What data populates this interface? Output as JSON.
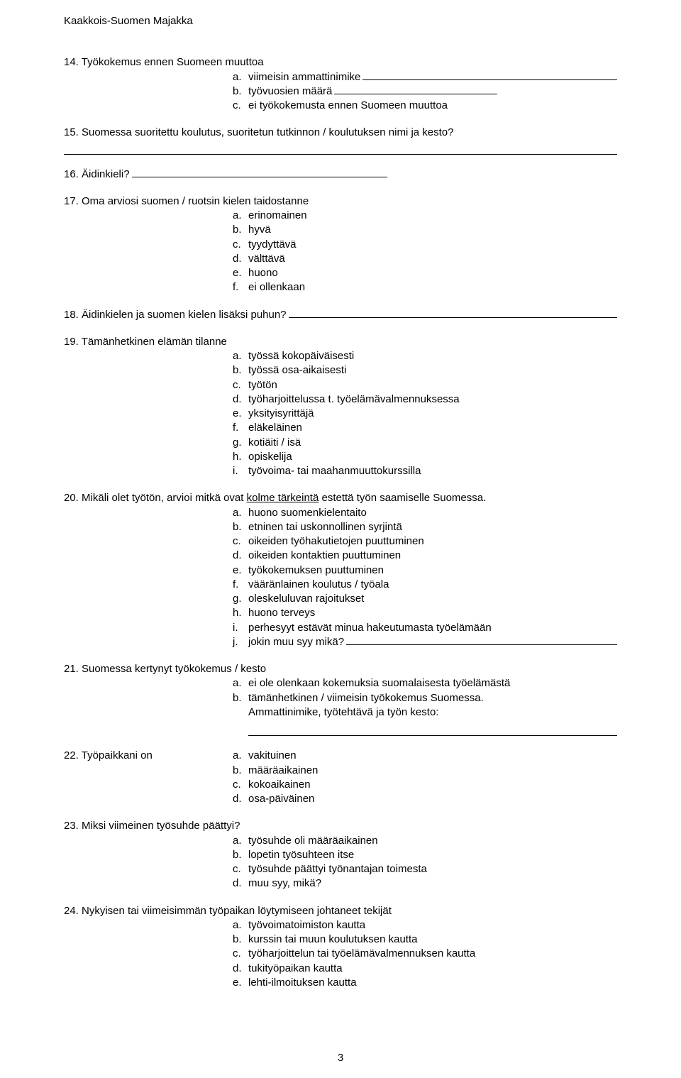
{
  "header": "Kaakkois-Suomen Majakka",
  "pageNumber": "3",
  "q14": {
    "title": "14. Työkokemus ennen Suomeen muuttoa",
    "a": "a.",
    "a_text": "viimeisin ammattinimike",
    "b": "b.",
    "b_text": "työvuosien määrä",
    "c": "c.",
    "c_text": "ei työkokemusta ennen Suomeen muuttoa"
  },
  "q15": {
    "title": "15. Suomessa suoritettu koulutus, suoritetun tutkinnon / koulutuksen nimi ja kesto?"
  },
  "q16": {
    "title": "16. Äidinkieli?"
  },
  "q17": {
    "title": "17. Oma arviosi suomen / ruotsin kielen taidostanne",
    "opts": {
      "a": "a.",
      "a_text": "erinomainen",
      "b": "b.",
      "b_text": "hyvä",
      "c": "c.",
      "c_text": "tyydyttävä",
      "d": "d.",
      "d_text": "välttävä",
      "e": "e.",
      "e_text": "huono",
      "f": "f.",
      "f_text": "ei ollenkaan"
    }
  },
  "q18": {
    "title": "18. Äidinkielen  ja suomen kielen lisäksi puhun?"
  },
  "q19": {
    "title": "19. Tämänhetkinen elämän tilanne",
    "opts": {
      "a": "a.",
      "a_text": "työssä kokopäiväisesti",
      "b": "b.",
      "b_text": "työssä osa-aikaisesti",
      "c": "c.",
      "c_text": "työtön",
      "d": "d.",
      "d_text": "työharjoittelussa t. työelämävalmennuksessa",
      "e": "e.",
      "e_text": "yksityisyrittäjä",
      "f": "f.",
      "f_text": "eläkeläinen",
      "g": "g.",
      "g_text": "kotiäiti / isä",
      "h": "h.",
      "h_text": "opiskelija",
      "i": "i.",
      "i_text": "työvoima- tai maahanmuuttokurssilla"
    }
  },
  "q20": {
    "title_pre": "20. Mikäli olet työtön, arvioi mitkä ovat ",
    "title_u": "kolme tärkeintä",
    "title_post": " estettä työn saamiselle Suomessa.",
    "opts": {
      "a": "a.",
      "a_text": "huono suomenkielentaito",
      "b": "b.",
      "b_text": "etninen tai uskonnollinen syrjintä",
      "c": "c.",
      "c_text": "oikeiden työhakutietojen puuttuminen",
      "d": "d.",
      "d_text": "oikeiden kontaktien puuttuminen",
      "e": "e.",
      "e_text": "työkokemuksen puuttuminen",
      "f": "f.",
      "f_text": "vääränlainen koulutus / työala",
      "g": "g.",
      "g_text": "oleskeluluvan rajoitukset",
      "h": "h.",
      "h_text": "huono terveys",
      "i": "i.",
      "i_text": "perhesyyt estävät minua hakeutumasta työelämään",
      "j": "j.",
      "j_text": "jokin muu syy mikä?"
    }
  },
  "q21": {
    "title": "21. Suomessa kertynyt työkokemus  / kesto",
    "opts": {
      "a": "a.",
      "a_text": "ei ole olenkaan kokemuksia suomalaisesta työelämästä",
      "b": "b.",
      "b_text": "tämänhetkinen / viimeisin työkokemus Suomessa.",
      "b_sub": "Ammattinimike, työtehtävä ja työn kesto:"
    }
  },
  "q22": {
    "title": "22. Työpaikkani on",
    "opts": {
      "a": "a.",
      "a_text": "vakituinen",
      "b": "b.",
      "b_text": "määräaikainen",
      "c": "c.",
      "c_text": " kokoaikainen",
      "d": "d.",
      "d_text": "osa-päiväinen"
    }
  },
  "q23": {
    "title": "23. Miksi viimeinen työsuhde päättyi?",
    "opts": {
      "a": "a.",
      "a_text": " työsuhde oli määräaikainen",
      "b": "b.",
      "b_text": "lopetin työsuhteen itse",
      "c": "c.",
      "c_text": "työsuhde päättyi työnantajan toimesta",
      "d": "d.",
      "d_text": "muu syy, mikä?"
    }
  },
  "q24": {
    "title": "24. Nykyisen tai viimeisimmän työpaikan löytymiseen johtaneet tekijät",
    "opts": {
      "a": "a.",
      "a_text": " työvoimatoimiston kautta",
      "b": "b.",
      "b_text": "kurssin tai muun koulutuksen kautta",
      "c": "c.",
      "c_text": "työharjoittelun tai työelämävalmennuksen kautta",
      "d": "d.",
      "d_text": "tukityöpaikan kautta",
      "e": "e.",
      "e_text": "lehti-ilmoituksen kautta"
    }
  }
}
